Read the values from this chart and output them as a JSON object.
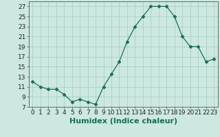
{
  "x": [
    0,
    1,
    2,
    3,
    4,
    5,
    6,
    7,
    8,
    9,
    10,
    11,
    12,
    13,
    14,
    15,
    16,
    17,
    18,
    19,
    20,
    21,
    22,
    23
  ],
  "y": [
    12,
    11,
    10.5,
    10.5,
    9.5,
    8,
    8.5,
    8,
    7.5,
    11,
    13.5,
    16,
    20,
    23,
    25,
    27,
    27,
    27,
    25,
    21,
    19,
    19,
    16,
    16.5
  ],
  "line_color": "#1a6b5a",
  "marker": "D",
  "marker_size": 2.5,
  "bg_color": "#cce8e0",
  "grid_color": "#aacfc8",
  "xlabel": "Humidex (Indice chaleur)",
  "xlim": [
    -0.5,
    23.5
  ],
  "ylim": [
    7,
    28
  ],
  "yticks": [
    7,
    9,
    11,
    13,
    15,
    17,
    19,
    21,
    23,
    25,
    27
  ],
  "xticks": [
    0,
    1,
    2,
    3,
    4,
    5,
    6,
    7,
    8,
    9,
    10,
    11,
    12,
    13,
    14,
    15,
    16,
    17,
    18,
    19,
    20,
    21,
    22,
    23
  ],
  "tick_label_fontsize": 6.5,
  "xlabel_fontsize": 8
}
